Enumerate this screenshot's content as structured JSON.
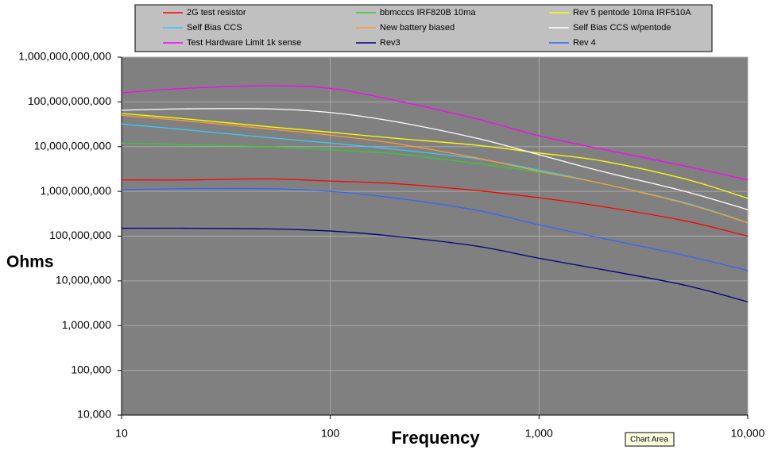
{
  "chart_data": {
    "type": "line",
    "xlabel": "Frequency",
    "ylabel": "Ohms",
    "xscale": "log",
    "yscale": "log",
    "grid": true,
    "legend": "top",
    "tooltip": "Chart Area",
    "x": [
      10,
      20,
      50,
      100,
      200,
      500,
      1000,
      2000,
      5000,
      10000
    ],
    "xlim": [
      10,
      10000
    ],
    "xticks": [
      10,
      100,
      {
        "value": 1000,
        "label": "1,000"
      },
      {
        "value": 10000,
        "label": "10,000"
      }
    ],
    "ylim": [
      10000,
      1000000000000
    ],
    "yticks": [
      {
        "value": 10000,
        "label": "10,000"
      },
      {
        "value": 100000,
        "label": "100,000"
      },
      {
        "value": 1000000,
        "label": "1,000,000"
      },
      {
        "value": 10000000,
        "label": "10,000,000"
      },
      {
        "value": 100000000,
        "label": "100,000,000"
      },
      {
        "value": 1000000000,
        "label": "1,000,000,000"
      },
      {
        "value": 10000000000,
        "label": "10,000,000,000"
      },
      {
        "value": 100000000000,
        "label": "100,000,000,000"
      },
      {
        "value": 1000000000000,
        "label": "1,000,000,000,000"
      }
    ],
    "series": [
      {
        "name": "2G test resistor",
        "color": "#ff0000",
        "values": [
          1800000000,
          1800000000,
          1900000000,
          1700000000,
          1500000000,
          1050000000,
          720000000,
          460000000,
          220000000,
          100000000
        ]
      },
      {
        "name": "bbmcccs IRF820B 10ma",
        "color": "#33cc33",
        "values": [
          12000000000,
          11000000000,
          10000000000,
          8500000000,
          7000000000,
          4200000000,
          2700000000,
          1500000000,
          560000000,
          200000000
        ]
      },
      {
        "name": "Rev 5 pentode 10ma IRF510A",
        "color": "#ffff00",
        "values": [
          55000000000,
          42000000000,
          28000000000,
          21000000000,
          15500000000,
          10800000000,
          7200000000,
          4800000000,
          1900000000,
          700000000
        ]
      },
      {
        "name": "Self Bias CCS",
        "color": "#33ccff",
        "values": [
          32000000000,
          24000000000,
          16000000000,
          12000000000,
          8800000000,
          5400000000,
          3000000000,
          1500000000,
          560000000,
          200000000
        ]
      },
      {
        "name": "New battery biased",
        "color": "#ff9933",
        "values": [
          50000000000,
          38000000000,
          25000000000,
          18000000000,
          12000000000,
          5600000000,
          2800000000,
          1500000000,
          540000000,
          200000000
        ]
      },
      {
        "name": "Self Bias CCS w/pentode",
        "color": "#ffffff",
        "values": [
          65000000000,
          70000000000,
          70000000000,
          58000000000,
          37000000000,
          15500000000,
          6600000000,
          2800000000,
          1000000000,
          390000000
        ]
      },
      {
        "name": "Test Hardware Limit 1k sense",
        "color": "#ff00ff",
        "values": [
          160000000000,
          200000000000,
          230000000000,
          200000000000,
          110000000000,
          42000000000,
          17500000000,
          8800000000,
          3700000000,
          1800000000
        ]
      },
      {
        "name": "Rev3",
        "color": "#000080",
        "values": [
          150000000,
          150000000,
          145000000,
          130000000,
          100000000,
          60000000,
          32000000,
          18000000,
          8000000,
          3400000
        ]
      },
      {
        "name": "Rev 4",
        "color": "#3366ff",
        "values": [
          1100000000,
          1150000000,
          1150000000,
          1000000000,
          720000000,
          380000000,
          180000000,
          90000000,
          37000000,
          17000000
        ]
      }
    ]
  }
}
